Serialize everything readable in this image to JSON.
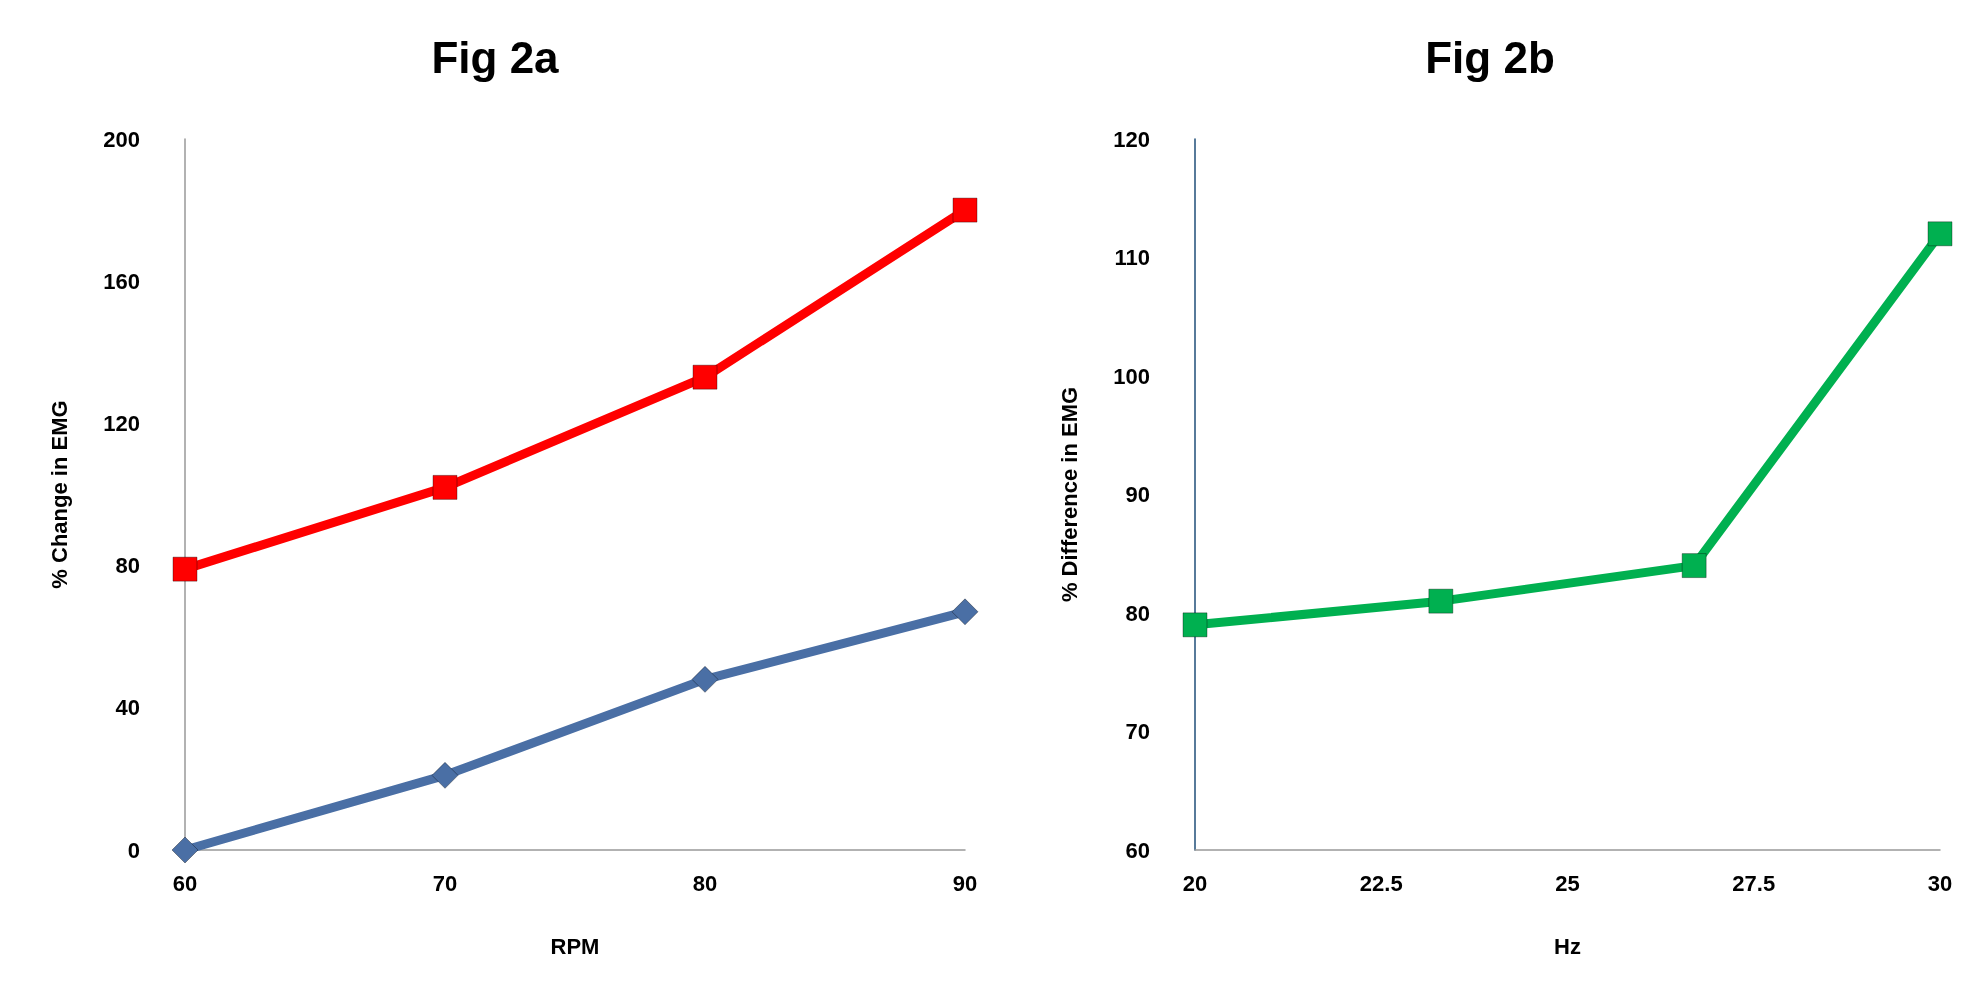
{
  "chart_data": [
    {
      "type": "line",
      "title": "Fig 2a",
      "xlabel": "RPM",
      "ylabel": "% Change in EMG",
      "xlim": [
        60,
        90
      ],
      "xticks": [
        60,
        70,
        80,
        90
      ],
      "ylim": [
        0,
        200
      ],
      "yticks": [
        0,
        40,
        80,
        120,
        160,
        200
      ],
      "series": [
        {
          "color": "#ff0000",
          "marker": "square",
          "x": [
            60,
            70,
            80,
            90
          ],
          "values": [
            79,
            102,
            133,
            180
          ]
        },
        {
          "color": "#4a6fa5",
          "marker": "diamond",
          "x": [
            60,
            70,
            80,
            90
          ],
          "values": [
            0,
            21,
            48,
            67
          ]
        }
      ]
    },
    {
      "type": "line",
      "title": "Fig 2b",
      "xlabel": "Hz",
      "ylabel": "% Difference in EMG",
      "xlim": [
        20,
        30
      ],
      "xticks": [
        20,
        22.5,
        25,
        27.5,
        30
      ],
      "ylim": [
        60,
        120
      ],
      "yticks": [
        60,
        70,
        80,
        90,
        100,
        110,
        120
      ],
      "series": [
        {
          "color": "#00b050",
          "marker": "square",
          "x": [
            20,
            23.3,
            26.7,
            30
          ],
          "values": [
            79,
            81,
            84,
            112
          ]
        }
      ]
    }
  ]
}
